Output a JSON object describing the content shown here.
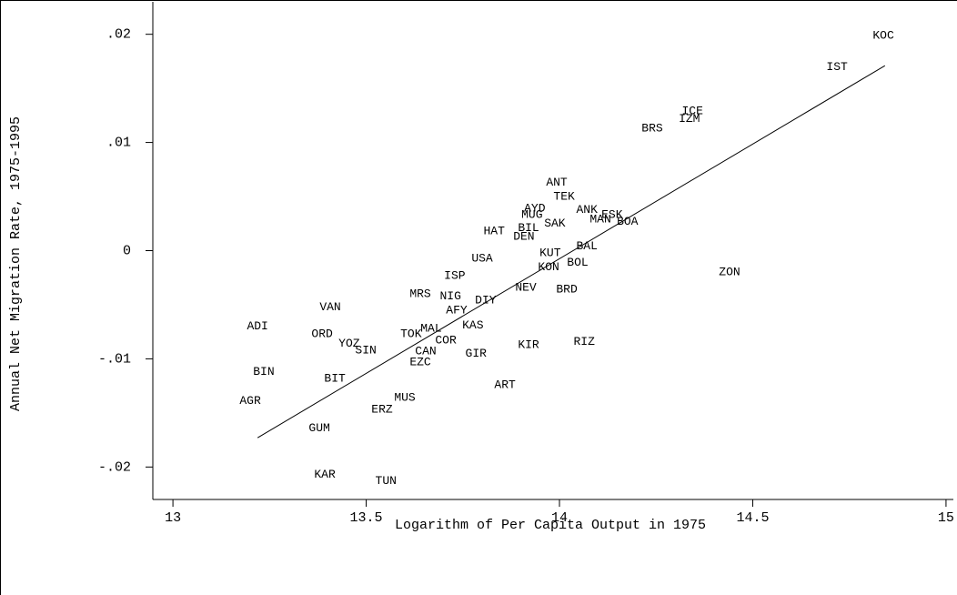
{
  "chart_data": {
    "type": "scatter",
    "ylabel": "Annual Net Migration Rate, 1975-1995",
    "xlabel": "Logarithm of Per Capita Output in 1975",
    "xlim": [
      12.948,
      15.019
    ],
    "ylim": [
      -0.023,
      0.023
    ],
    "xticks": [
      13,
      13.5,
      14,
      14.5,
      15
    ],
    "yticks": [
      {
        "value": 0.02,
        "label": ".02"
      },
      {
        "value": 0.01,
        "label": ".01"
      },
      0,
      {
        "value": -0.01,
        "label": "-.01"
      },
      {
        "value": -0.02,
        "label": "-.02"
      }
    ],
    "color": "#000000",
    "points": [
      {
        "label": "KOC",
        "x": 14.838,
        "y": 0.0199
      },
      {
        "label": "IST",
        "x": 14.718,
        "y": 0.017
      },
      {
        "label": "ICE",
        "x": 14.344,
        "y": 0.0129
      },
      {
        "label": "IZM",
        "x": 14.336,
        "y": 0.0122
      },
      {
        "label": "BRS",
        "x": 14.24,
        "y": 0.0113
      },
      {
        "label": "ANT",
        "x": 13.993,
        "y": 0.0063
      },
      {
        "label": "TEK",
        "x": 14.012,
        "y": 0.005
      },
      {
        "label": "AYD",
        "x": 13.936,
        "y": 0.0039
      },
      {
        "label": "MUG",
        "x": 13.929,
        "y": 0.0033
      },
      {
        "label": "ANK",
        "x": 14.071,
        "y": 0.0038
      },
      {
        "label": "MAN",
        "x": 14.106,
        "y": 0.0029
      },
      {
        "label": "ESK",
        "x": 14.136,
        "y": 0.0033
      },
      {
        "label": "BOA",
        "x": 14.176,
        "y": 0.0027
      },
      {
        "label": "SAK",
        "x": 13.988,
        "y": 0.0025
      },
      {
        "label": "BIL",
        "x": 13.92,
        "y": 0.0021
      },
      {
        "label": "HAT",
        "x": 13.831,
        "y": 0.0018
      },
      {
        "label": "DEN",
        "x": 13.908,
        "y": 0.0013
      },
      {
        "label": "USA",
        "x": 13.8,
        "y": -0.0007
      },
      {
        "label": "KUT",
        "x": 13.976,
        "y": -0.0002
      },
      {
        "label": "BAL",
        "x": 14.071,
        "y": 0.0004
      },
      {
        "label": "BOL",
        "x": 14.047,
        "y": -0.0011
      },
      {
        "label": "KON",
        "x": 13.972,
        "y": -0.0015
      },
      {
        "label": "ISP",
        "x": 13.729,
        "y": -0.0023
      },
      {
        "label": "NEV",
        "x": 13.913,
        "y": -0.0034
      },
      {
        "label": "BRD",
        "x": 14.019,
        "y": -0.0036
      },
      {
        "label": "ZON",
        "x": 14.44,
        "y": -0.002
      },
      {
        "label": "MRS",
        "x": 13.64,
        "y": -0.004
      },
      {
        "label": "NIG",
        "x": 13.718,
        "y": -0.0042
      },
      {
        "label": "DIY",
        "x": 13.809,
        "y": -0.0046
      },
      {
        "label": "AFY",
        "x": 13.734,
        "y": -0.0055
      },
      {
        "label": "VAN",
        "x": 13.407,
        "y": -0.0052
      },
      {
        "label": "ADI",
        "x": 13.219,
        "y": -0.007
      },
      {
        "label": "ORD",
        "x": 13.386,
        "y": -0.0077
      },
      {
        "label": "YOZ",
        "x": 13.456,
        "y": -0.0086
      },
      {
        "label": "SIN",
        "x": 13.499,
        "y": -0.0092
      },
      {
        "label": "TOK",
        "x": 13.616,
        "y": -0.0077
      },
      {
        "label": "MAL",
        "x": 13.668,
        "y": -0.0072
      },
      {
        "label": "KAS",
        "x": 13.776,
        "y": -0.0069
      },
      {
        "label": "COR",
        "x": 13.706,
        "y": -0.0083
      },
      {
        "label": "GIR",
        "x": 13.784,
        "y": -0.0095
      },
      {
        "label": "CAN",
        "x": 13.654,
        "y": -0.0093
      },
      {
        "label": "EZC",
        "x": 13.64,
        "y": -0.0103
      },
      {
        "label": "KIR",
        "x": 13.92,
        "y": -0.0087
      },
      {
        "label": "RIZ",
        "x": 14.064,
        "y": -0.0084
      },
      {
        "label": "BIN",
        "x": 13.235,
        "y": -0.0112
      },
      {
        "label": "BIT",
        "x": 13.419,
        "y": -0.0118
      },
      {
        "label": "ART",
        "x": 13.859,
        "y": -0.0124
      },
      {
        "label": "AGR",
        "x": 13.2,
        "y": -0.0139
      },
      {
        "label": "MUS",
        "x": 13.6,
        "y": -0.0136
      },
      {
        "label": "ERZ",
        "x": 13.541,
        "y": -0.0147
      },
      {
        "label": "GUM",
        "x": 13.379,
        "y": -0.0164
      },
      {
        "label": "KAR",
        "x": 13.393,
        "y": -0.0207
      },
      {
        "label": "TUN",
        "x": 13.551,
        "y": -0.0213
      }
    ],
    "fit": {
      "x": [
        13.219,
        14.842
      ],
      "y": [
        -0.0173,
        0.0171
      ]
    }
  }
}
